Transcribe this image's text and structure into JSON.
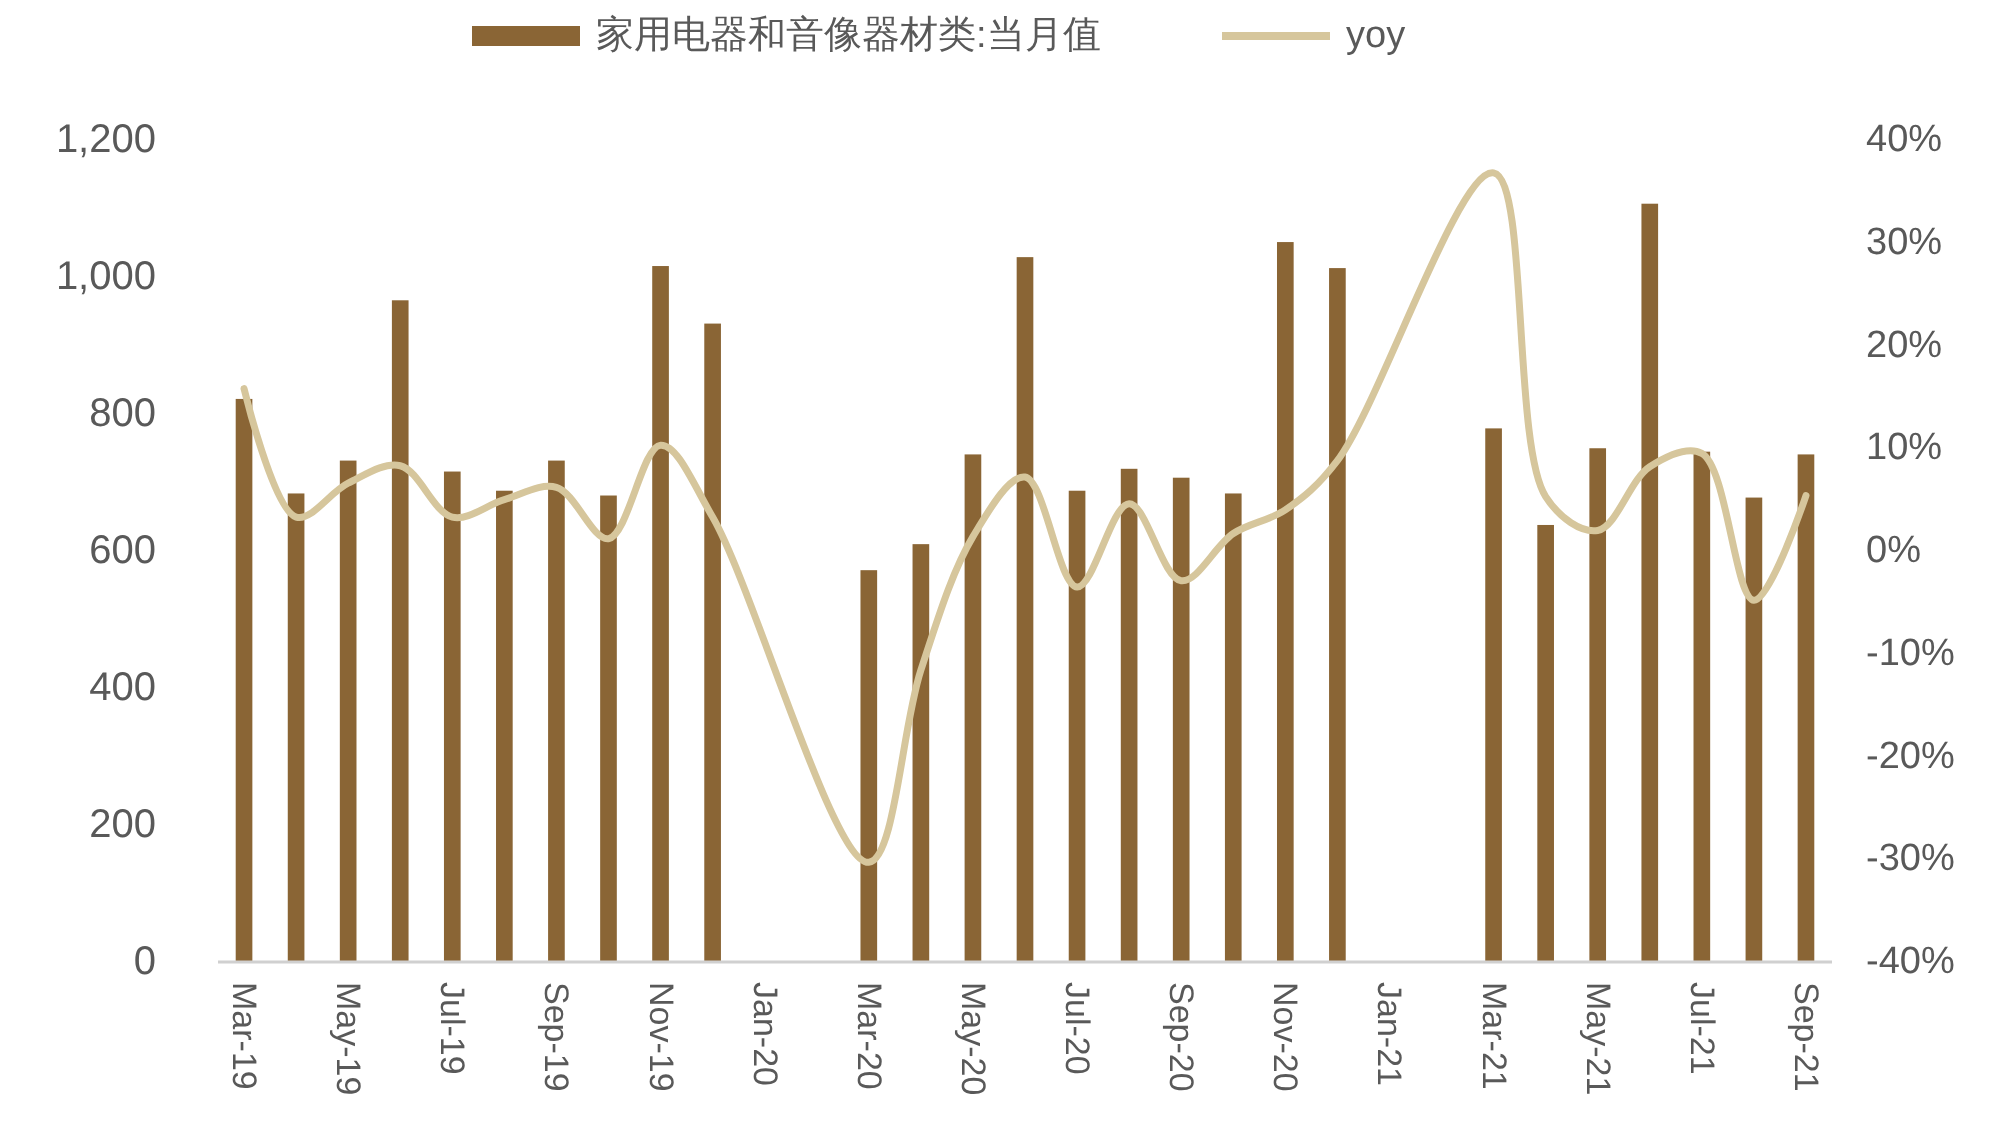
{
  "chart_data": {
    "type": "bar",
    "categories": [
      "Mar-19",
      null,
      "May-19",
      null,
      "Jul-19",
      null,
      "Sep-19",
      null,
      "Nov-19",
      null,
      "Jan-20",
      null,
      "Mar-20",
      null,
      "May-20",
      null,
      "Jul-20",
      null,
      "Sep-20",
      null,
      "Nov-20",
      null,
      "Jan-21",
      null,
      "Mar-21",
      null,
      "May-21",
      null,
      "Jul-21",
      null,
      "Sep-21"
    ],
    "series": [
      {
        "name": "家用电器和音像器材类:当月值",
        "color": "#8a6535",
        "values": [
          822,
          684,
          732,
          966,
          716,
          688,
          732,
          681,
          1016,
          932,
          null,
          null,
          572,
          610,
          741,
          1029,
          688,
          720,
          707,
          684,
          1051,
          1013,
          null,
          null,
          779,
          638,
          750,
          1107,
          745,
          678,
          741
        ]
      },
      {
        "name": "yoy",
        "type": "line",
        "axis": "y2",
        "color": "#d6c69c",
        "values": [
          15.8,
          3.3,
          6.6,
          8.3,
          3.3,
          5,
          6.2,
          1.2,
          10.3,
          3.3,
          null,
          null,
          -30.3,
          -11.6,
          1.4,
          7.2,
          -3.5,
          4.6,
          -2.9,
          1.7,
          4,
          8.8,
          null,
          null,
          36.8,
          5.3,
          2,
          8.2,
          9.5,
          -4.8,
          5.4
        ]
      }
    ],
    "ylim": [
      0,
      1200
    ],
    "yticks": [
      0,
      200,
      400,
      600,
      800,
      {
        "value": 1000,
        "label": "1,000"
      },
      {
        "value": 1200,
        "label": "1,200"
      }
    ],
    "y2lim": [
      -40,
      40
    ],
    "y2ticks": [
      {
        "value": -40,
        "label": "-40%"
      },
      {
        "value": -30,
        "label": "-30%"
      },
      {
        "value": -20,
        "label": "-20%"
      },
      {
        "value": -10,
        "label": "-10%"
      },
      {
        "value": 0,
        "label": "0%"
      },
      {
        "value": 10,
        "label": "10%"
      },
      {
        "value": 20,
        "label": "20%"
      },
      {
        "value": 30,
        "label": "30%"
      },
      {
        "value": 40,
        "label": "40%"
      }
    ],
    "legend": "top"
  }
}
